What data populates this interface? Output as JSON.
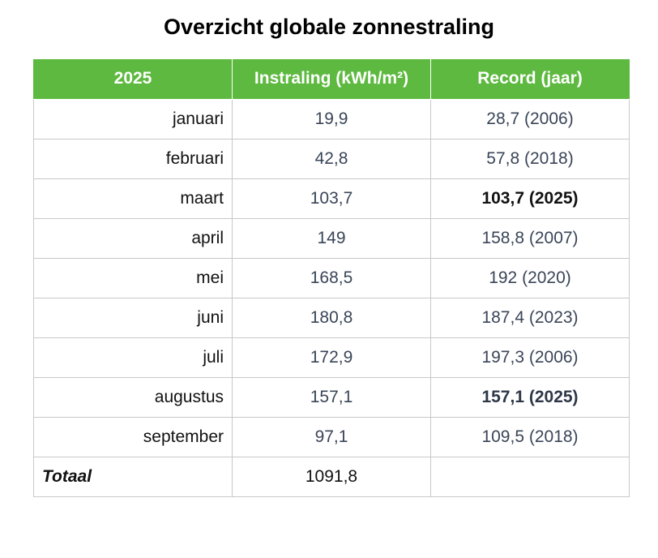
{
  "title": "Overzicht globale zonnestraling",
  "table": {
    "header": [
      "2025",
      "Instraling (kWh/m²)",
      "Record (jaar)"
    ],
    "rows": [
      [
        "januari",
        "19,9",
        "28,7 (2006)"
      ],
      [
        "februari",
        "42,8",
        "57,8 (2018)"
      ],
      [
        "maart",
        "103,7",
        "103,7 (2025)"
      ],
      [
        "april",
        "149",
        "158,8 (2007)"
      ],
      [
        "mei",
        "168,5",
        "192 (2020)"
      ],
      [
        "juni",
        "180,8",
        "187,4 (2023)"
      ],
      [
        "juli",
        "172,9",
        "197,3 (2006)"
      ],
      [
        "augustus",
        "157,1",
        "157,1 (2025)"
      ],
      [
        "september",
        "97,1",
        "109,5 (2018)"
      ]
    ],
    "total": {
      "label": "Totaal",
      "value": "1091,8"
    }
  }
}
